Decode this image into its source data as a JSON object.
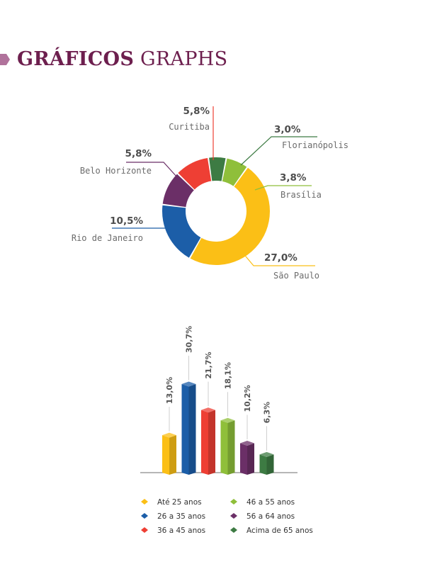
{
  "header": {
    "title_bold": "GRÁFICOS",
    "title_light": "GRAPHS"
  },
  "chart_data": [
    {
      "type": "pie",
      "title": "",
      "slices": [
        {
          "label": "São Paulo",
          "value": 27.0,
          "display": "27,0%",
          "color": "#fbbf16"
        },
        {
          "label": "Rio de Janeiro",
          "value": 10.5,
          "display": "10,5%",
          "color": "#1c5ea8"
        },
        {
          "label": "Belo Horizonte",
          "value": 5.8,
          "display": "5,8%",
          "color": "#6b2f67"
        },
        {
          "label": "Curitiba",
          "value": 5.8,
          "display": "5,8%",
          "color": "#ee3f34"
        },
        {
          "label": "Florianópolis",
          "value": 3.0,
          "display": "3,0%",
          "color": "#3d7b43"
        },
        {
          "label": "Brasília",
          "value": 3.8,
          "display": "3,8%",
          "color": "#8fbf3a"
        }
      ]
    },
    {
      "type": "bar",
      "title": "",
      "categories": [
        "Até 25 anos",
        "26 a 35 anos",
        "36 a 45 anos",
        "46 a 55 anos",
        "56 a 64 anos",
        "Acima de 65 anos"
      ],
      "values": [
        13.0,
        30.7,
        21.7,
        18.1,
        10.2,
        6.3
      ],
      "value_labels": [
        "13,0%",
        "30,7%",
        "21,7%",
        "18,1%",
        "10,2%",
        "6,3%"
      ],
      "colors": [
        "#fbbf16",
        "#1c5ea8",
        "#ee3f34",
        "#8fbf3a",
        "#6b2f67",
        "#3d7b43"
      ],
      "legend": "bottom, two columns"
    }
  ]
}
